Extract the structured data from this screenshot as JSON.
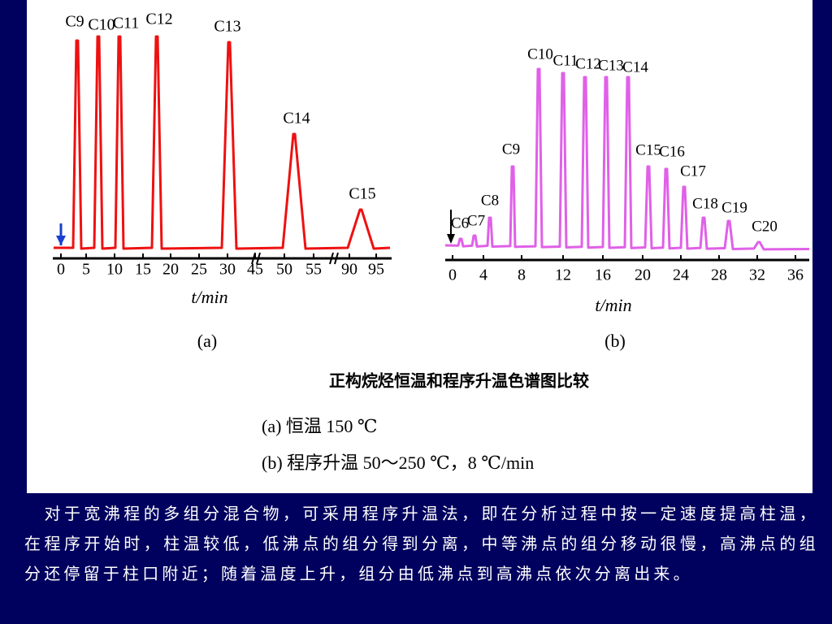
{
  "panel_a": {
    "peaks": [
      "C9",
      "C10",
      "C11",
      "C12",
      "C13",
      "C14",
      "C15"
    ],
    "x_ticks": [
      "0",
      "5",
      "10",
      "15",
      "20",
      "25",
      "30",
      "45",
      "50",
      "55",
      "90",
      "95"
    ],
    "x_label": "t/min",
    "caption": "(a)"
  },
  "panel_b": {
    "peaks": [
      "C6",
      "C7",
      "C8",
      "C9",
      "C10",
      "C11",
      "C12",
      "C13",
      "C14",
      "C15",
      "C16",
      "C17",
      "C18",
      "C19",
      "C20"
    ],
    "x_ticks": [
      "0",
      "4",
      "8",
      "12",
      "16",
      "20",
      "24",
      "28",
      "32",
      "36"
    ],
    "x_label": "t/min",
    "caption": "(b)"
  },
  "figure_title": "正构烷烃恒温和程序升温色谱图比较",
  "legend": [
    "(a)  恒温 150 ℃",
    "(b)  程序升温 50～250 ℃，8 ℃/min"
  ],
  "paragraph": "　对于宽沸程的多组分混合物，可采用程序升温法，即在分析过程中按一定速度提高柱温，在程序开始时，柱温较低，低沸点的组分得到分离，中等沸点的组分移动很慢，高沸点的组分还停留于柱口附近；随着温度上升，组分由低沸点到高沸点依次分离出来。"
}
